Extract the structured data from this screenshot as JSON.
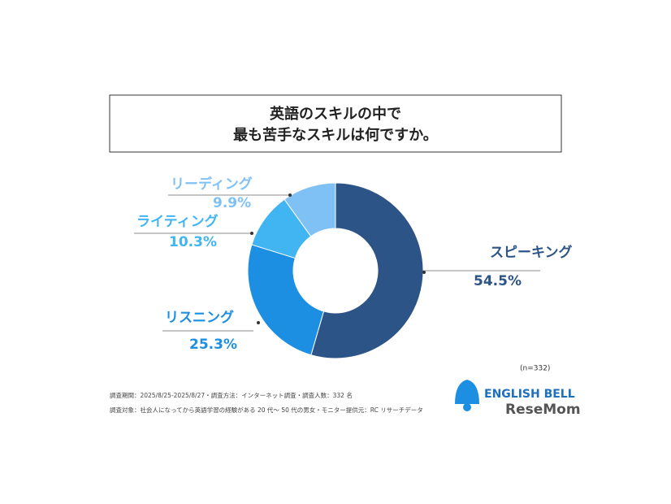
{
  "chart_data": {
    "type": "donut",
    "title": [
      "英語のスキルの中で",
      "最も苦手なスキルは何ですか。"
    ],
    "categories": [
      "スピーキング",
      "リスニング",
      "ライティング",
      "リーディング"
    ],
    "values": [
      54.5,
      25.3,
      10.3,
      9.9
    ],
    "value_labels": [
      "54.5%",
      "25.3%",
      "10.3%",
      "9.9%"
    ],
    "colors": [
      "#2d5486",
      "#1d8fe3",
      "#41b5f2",
      "#80c1f5"
    ],
    "sample_note": "(n=332)",
    "notes": [
      "調査期間：2025/8/25-2025/8/27・調査方法：インターネット調査・調査人数：332 名",
      "調査対象：社会人になってから英語学習の経験がある 20 代～ 50 代の男女・モニター提供元：RC リサーチデータ"
    ],
    "logo": "ENGLISH BELL",
    "watermark": "ReseMom"
  }
}
